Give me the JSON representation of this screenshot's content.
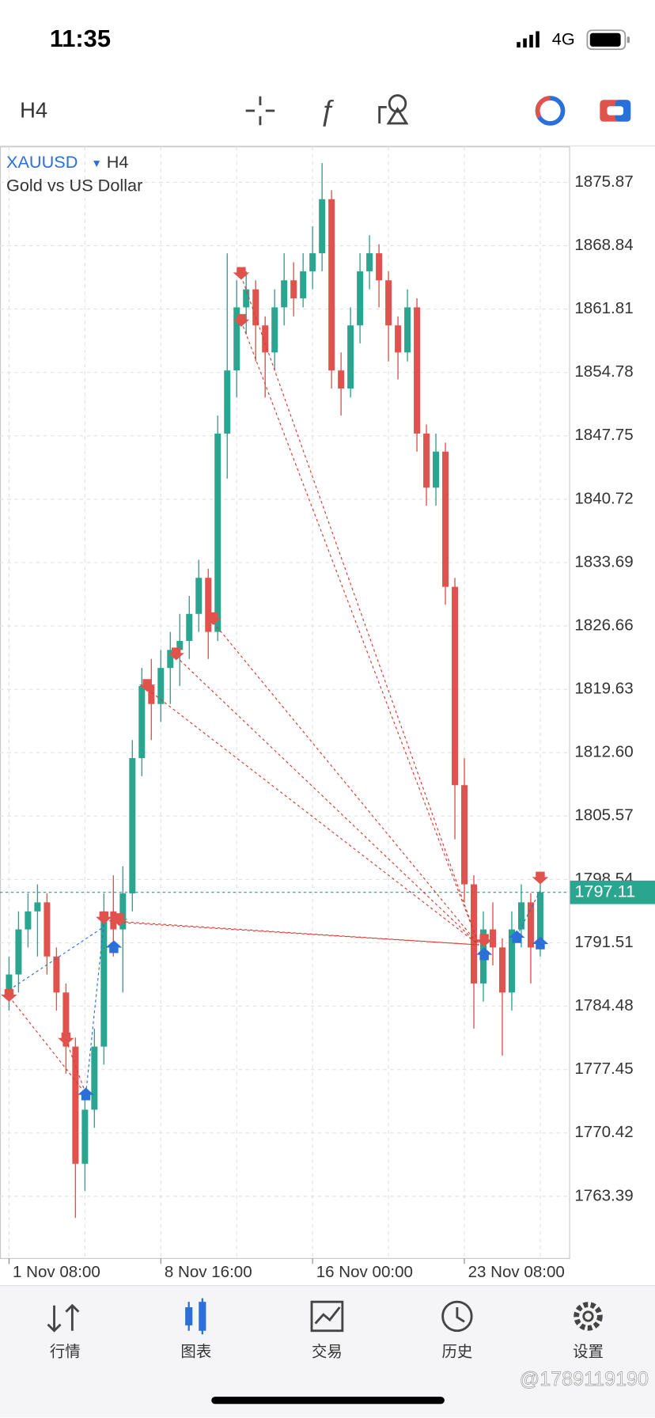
{
  "status_bar": {
    "time": "11:35",
    "network": "4G"
  },
  "toolbar": {
    "timeframe": "H4"
  },
  "chart_data": {
    "type": "candlestick",
    "symbol": "XAUUSD",
    "timeframe": "H4",
    "subtitle": "Gold vs US Dollar",
    "categories": [
      "1 Nov 08:00",
      null,
      null,
      null,
      null,
      null,
      null,
      null,
      null,
      null,
      null,
      null,
      null,
      null,
      null,
      null,
      "8 Nov 16:00",
      null,
      null,
      null,
      null,
      null,
      null,
      null,
      null,
      null,
      null,
      null,
      null,
      null,
      null,
      null,
      "16 Nov 00:00",
      null,
      null,
      null,
      null,
      null,
      null,
      null,
      null,
      null,
      null,
      null,
      null,
      null,
      null,
      null,
      "23 Nov 08:00",
      null,
      null,
      null,
      null,
      null,
      null,
      null,
      null
    ],
    "open": [
      1786,
      1788,
      1793,
      1795,
      1796,
      1790,
      1786,
      1780,
      1767,
      1773,
      1780,
      1795,
      1793,
      1797,
      1812,
      1820,
      1818,
      1822,
      1824,
      1825,
      1828,
      1832,
      1826,
      1848,
      1855,
      1862,
      1864,
      1860,
      1857,
      1862,
      1865,
      1863,
      1866,
      1868,
      1874,
      1855,
      1853,
      1860,
      1866,
      1868,
      1865,
      1860,
      1857,
      1862,
      1848,
      1842,
      1846,
      1831,
      1809,
      1798,
      1787,
      1793,
      1791,
      1786,
      1793,
      1796,
      1791
    ],
    "high": [
      1790,
      1795,
      1797,
      1798,
      1797,
      1791,
      1787,
      1781,
      1775,
      1782,
      1797,
      1799,
      1800,
      1814,
      1822,
      1823,
      1824,
      1826,
      1828,
      1830,
      1834,
      1833,
      1850,
      1868,
      1865,
      1866,
      1865,
      1861,
      1864,
      1868,
      1867,
      1868,
      1871,
      1878,
      1875,
      1857,
      1862,
      1868,
      1870,
      1869,
      1866,
      1861,
      1864,
      1863,
      1849,
      1848,
      1847,
      1832,
      1812,
      1799,
      1795,
      1796,
      1792,
      1795,
      1798,
      1797,
      1799
    ],
    "low": [
      1784,
      1786,
      1791,
      1790,
      1788,
      1784,
      1777,
      1761,
      1764,
      1771,
      1778,
      1790,
      1786,
      1795,
      1810,
      1814,
      1816,
      1818,
      1820,
      1823,
      1826,
      1823,
      1825,
      1843,
      1852,
      1859,
      1856,
      1852,
      1855,
      1860,
      1861,
      1862,
      1864,
      1866,
      1853,
      1850,
      1852,
      1858,
      1864,
      1862,
      1856,
      1854,
      1856,
      1846,
      1840,
      1840,
      1829,
      1803,
      1796,
      1782,
      1785,
      1789,
      1779,
      1784,
      1791,
      1787,
      1790
    ],
    "close": [
      1788,
      1793,
      1795,
      1796,
      1790,
      1786,
      1780,
      1767,
      1773,
      1780,
      1795,
      1793,
      1797,
      1812,
      1820,
      1818,
      1822,
      1824,
      1825,
      1828,
      1832,
      1826,
      1848,
      1855,
      1862,
      1864,
      1860,
      1857,
      1862,
      1865,
      1863,
      1866,
      1868,
      1874,
      1855,
      1853,
      1860,
      1866,
      1868,
      1865,
      1860,
      1857,
      1862,
      1848,
      1842,
      1846,
      1831,
      1809,
      1798,
      1787,
      1793,
      1791,
      1786,
      1793,
      1796,
      1791,
      1797.11
    ],
    "up_color": "#2aa58f",
    "down_color": "#e2524c",
    "ylim": [
      1756.5,
      1879.8
    ],
    "yticks": [
      1763.39,
      1770.42,
      1777.45,
      1784.48,
      1791.51,
      1798.54,
      1805.57,
      {
        "value": 1812.6,
        "label": "1812.60"
      },
      1819.63,
      1826.66,
      1833.69,
      1840.72,
      1847.75,
      1854.78,
      1861.81,
      1868.84,
      1875.87
    ],
    "current_price": 1797.11,
    "grid": true
  },
  "tabs": [
    "行情",
    "图表",
    "交易",
    "历史",
    "设置"
  ],
  "watermark": "@1789119190"
}
